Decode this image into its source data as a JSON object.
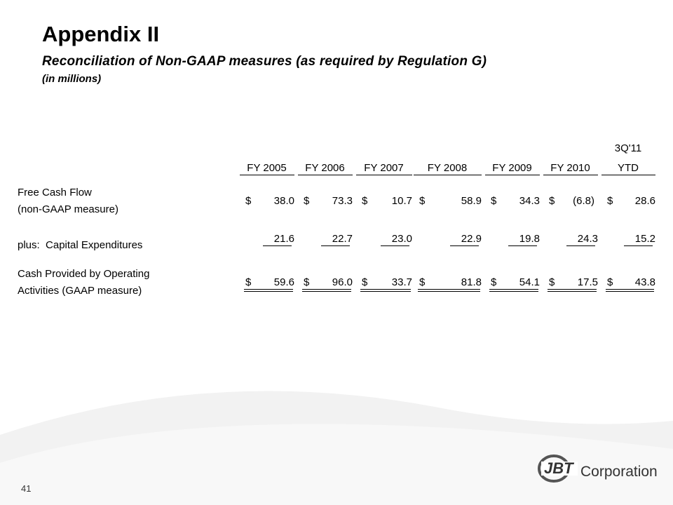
{
  "header": {
    "title": "Appendix II",
    "subtitle": "Reconciliation of Non-GAAP measures (as required by Regulation G)",
    "units": "(in millions)"
  },
  "table": {
    "columns": [
      [
        "FY 2005"
      ],
      [
        "FY 2006"
      ],
      [
        "FY 2007"
      ],
      [
        "FY 2008"
      ],
      [
        "FY 2009"
      ],
      [
        "FY 2010"
      ],
      [
        "3Q'11",
        "YTD"
      ]
    ],
    "rows": [
      {
        "label": [
          "Free Cash Flow",
          "(non-GAAP measure)"
        ],
        "currency": "$",
        "values": [
          "38.0",
          "73.3",
          "10.7",
          "58.9",
          "34.3",
          "(6.8)",
          "28.6"
        ]
      },
      {
        "label": [
          "plus:  Capital Expenditures"
        ],
        "values": [
          "21.6",
          "22.7",
          "23.0",
          "22.9",
          "19.8",
          "24.3",
          "15.2"
        ]
      },
      {
        "label": [
          "Cash Provided by Operating",
          "Activities (GAAP measure)"
        ],
        "currency": "$",
        "values": [
          "59.6",
          "96.0",
          "33.7",
          "81.8",
          "54.1",
          "17.5",
          "43.8"
        ]
      }
    ]
  },
  "footer": {
    "page_number": "41",
    "logo": {
      "mark": "JBT",
      "text": "Corporation"
    }
  }
}
